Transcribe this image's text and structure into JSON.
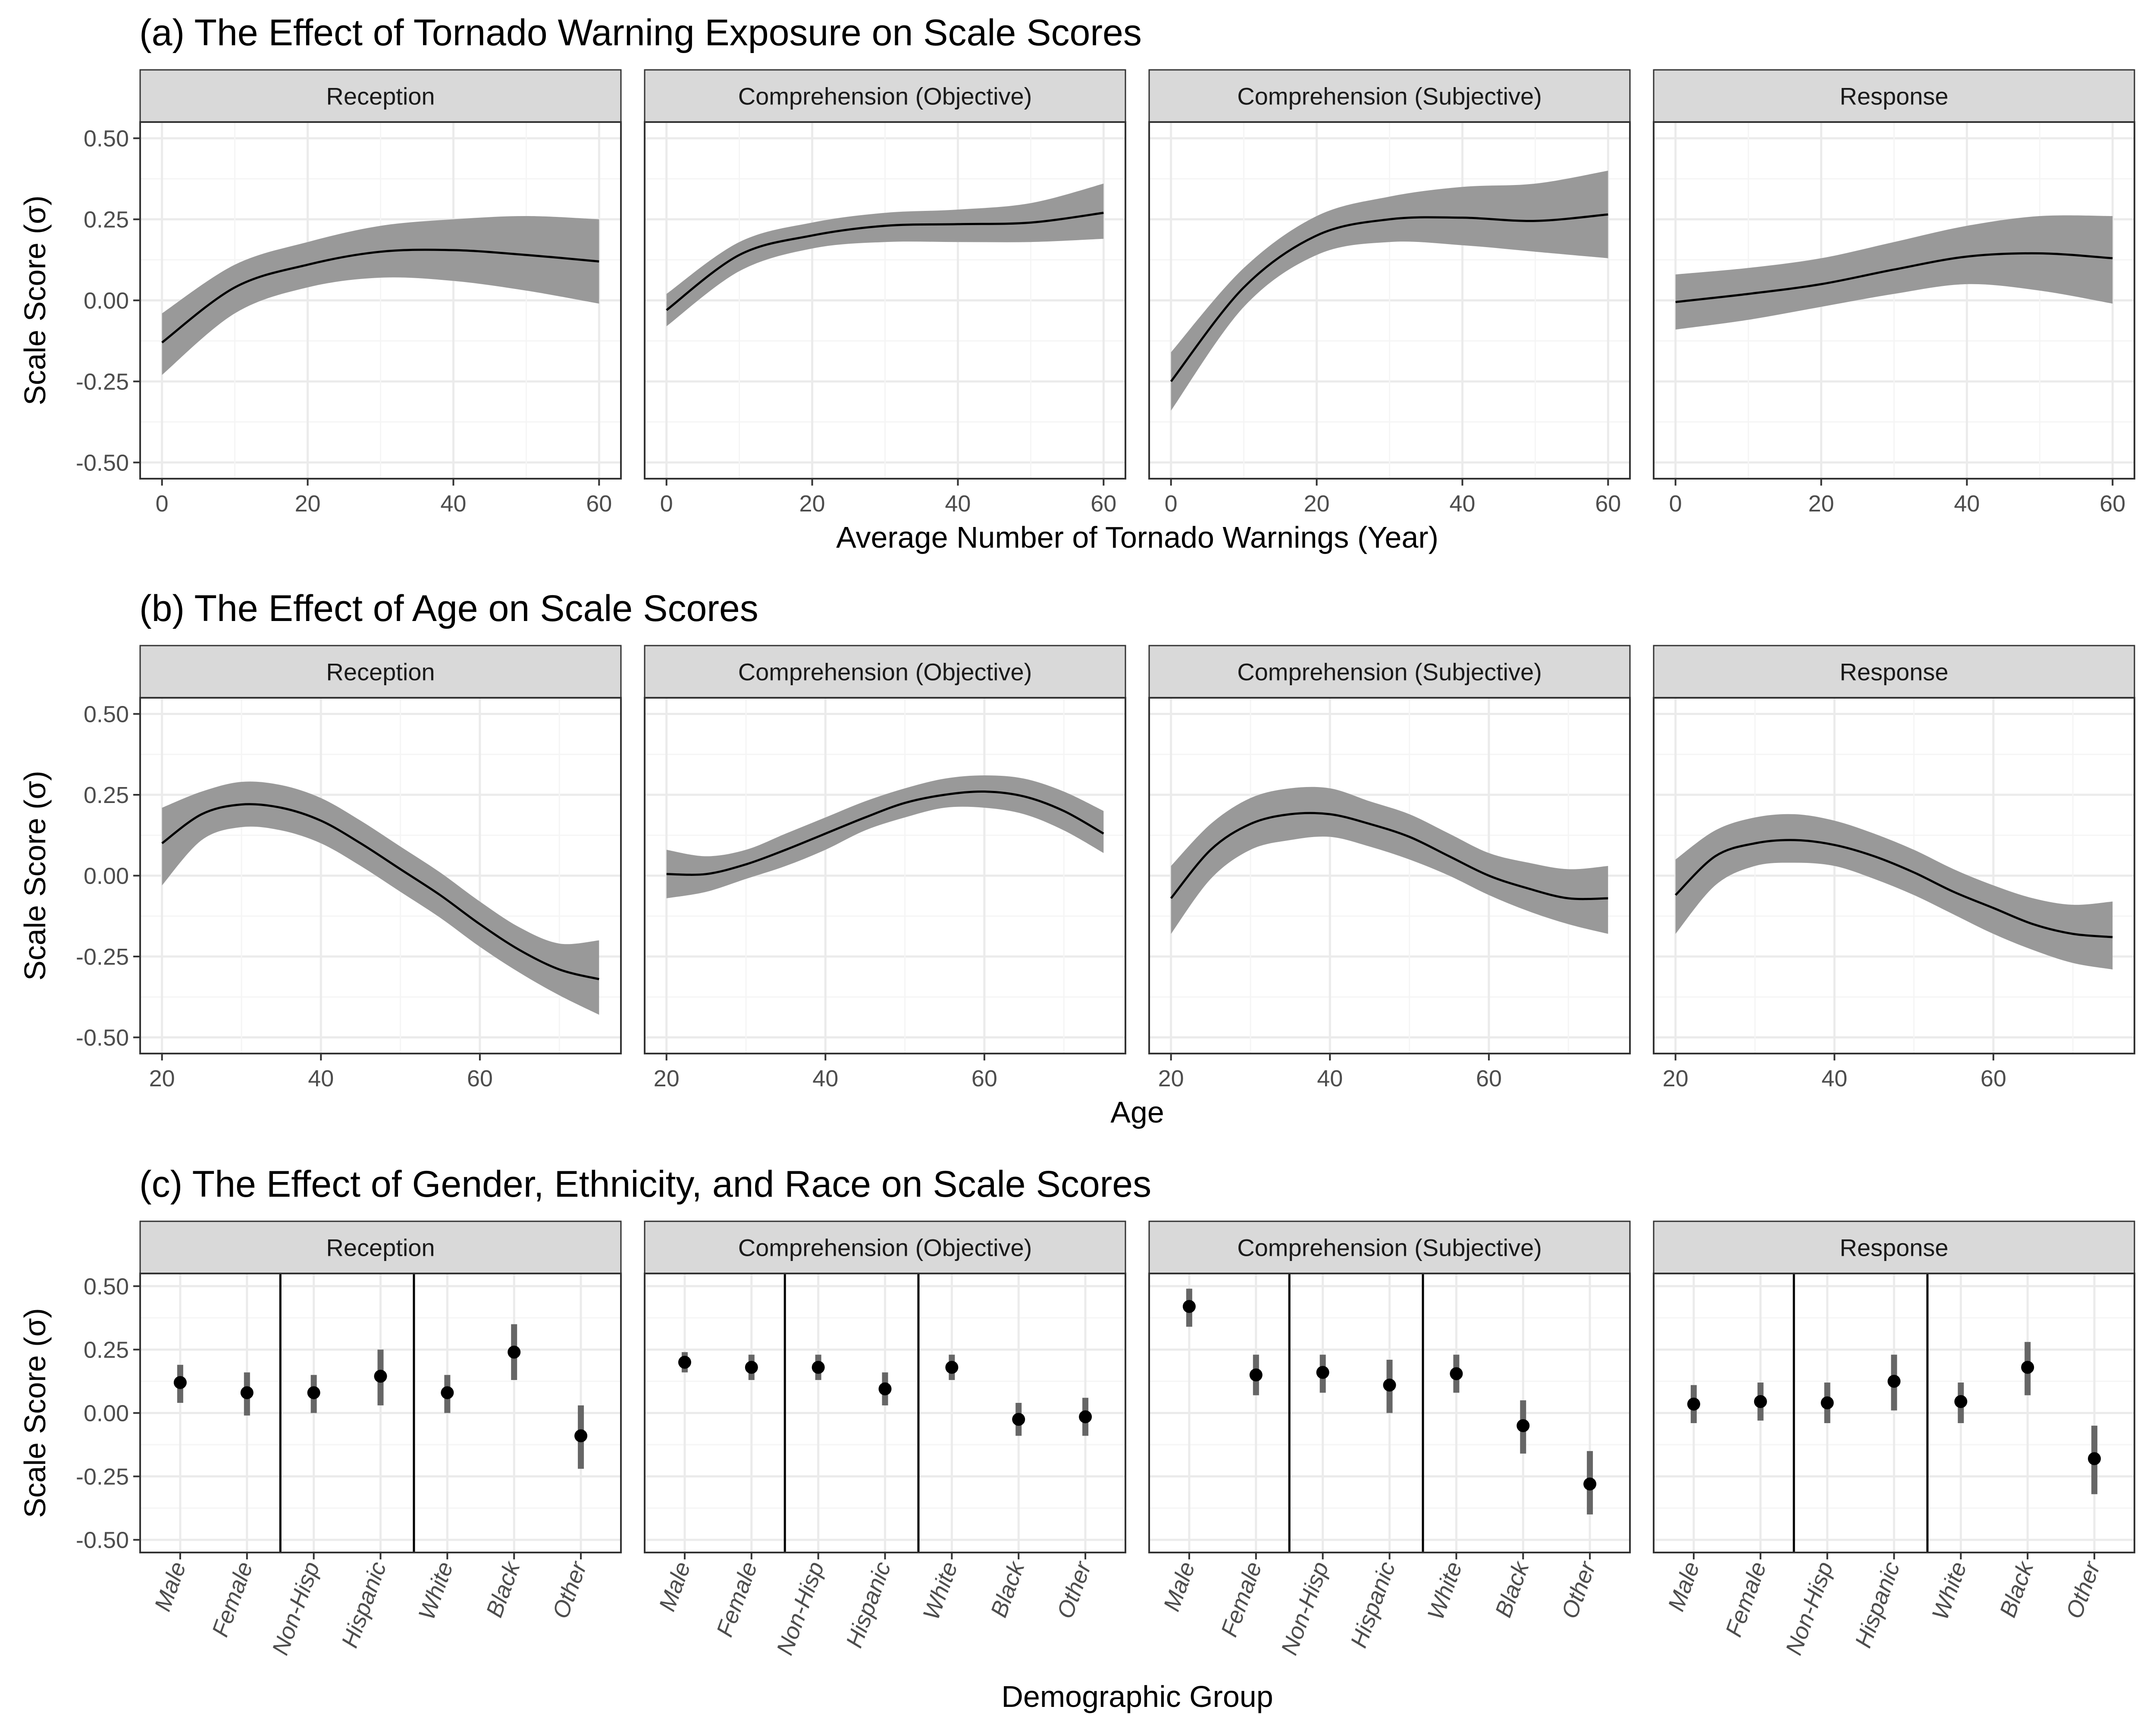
{
  "chart_data": [
    {
      "type": "line",
      "title": "(a) The Effect of Tornado Warning Exposure on Scale Scores",
      "xlabel": "Average Number of Tornado Warnings (Year)",
      "ylabel": "Scale Score (σ)",
      "xlim": [
        -3,
        63
      ],
      "ylim": [
        -0.55,
        0.55
      ],
      "xticks": [
        0,
        20,
        40,
        60
      ],
      "yticks": [
        -0.5,
        -0.25,
        0,
        0.25,
        0.5
      ],
      "ytick_labels": [
        "-0.50",
        "-0.25",
        "0.00",
        "0.25",
        "0.50"
      ],
      "grid": true,
      "panels": [
        {
          "name": "Reception",
          "x": [
            0,
            10,
            20,
            30,
            40,
            50,
            60
          ],
          "y": [
            -0.13,
            0.04,
            0.11,
            0.15,
            0.155,
            0.14,
            0.12
          ],
          "lower": [
            -0.23,
            -0.04,
            0.04,
            0.07,
            0.06,
            0.03,
            -0.01
          ],
          "upper": [
            -0.04,
            0.11,
            0.18,
            0.23,
            0.25,
            0.26,
            0.25
          ]
        },
        {
          "name": "Comprehension (Objective)",
          "x": [
            0,
            10,
            20,
            30,
            40,
            50,
            60
          ],
          "y": [
            -0.03,
            0.14,
            0.2,
            0.23,
            0.235,
            0.24,
            0.27
          ],
          "lower": [
            -0.08,
            0.09,
            0.16,
            0.18,
            0.18,
            0.18,
            0.19
          ],
          "upper": [
            0.02,
            0.18,
            0.24,
            0.27,
            0.28,
            0.3,
            0.36
          ]
        },
        {
          "name": "Comprehension (Subjective)",
          "x": [
            0,
            10,
            20,
            30,
            40,
            50,
            60
          ],
          "y": [
            -0.25,
            0.04,
            0.2,
            0.25,
            0.255,
            0.245,
            0.265
          ],
          "lower": [
            -0.34,
            -0.02,
            0.14,
            0.18,
            0.17,
            0.15,
            0.13
          ],
          "upper": [
            -0.16,
            0.1,
            0.26,
            0.32,
            0.35,
            0.36,
            0.4
          ]
        },
        {
          "name": "Response",
          "x": [
            0,
            10,
            20,
            30,
            40,
            50,
            60
          ],
          "y": [
            -0.005,
            0.02,
            0.05,
            0.095,
            0.135,
            0.145,
            0.13
          ],
          "lower": [
            -0.09,
            -0.06,
            -0.02,
            0.02,
            0.05,
            0.03,
            -0.01
          ],
          "upper": [
            0.08,
            0.1,
            0.13,
            0.18,
            0.23,
            0.26,
            0.26
          ]
        }
      ]
    },
    {
      "type": "line",
      "title": "(b) The Effect of Age on Scale Scores",
      "xlabel": "Age",
      "ylabel": "Scale Score (σ)",
      "xlim": [
        17.25,
        77.75
      ],
      "ylim": [
        -0.55,
        0.55
      ],
      "xticks": [
        20,
        40,
        60
      ],
      "yticks": [
        -0.5,
        -0.25,
        0,
        0.25,
        0.5
      ],
      "ytick_labels": [
        "-0.50",
        "-0.25",
        "0.00",
        "0.25",
        "0.50"
      ],
      "grid": true,
      "panels": [
        {
          "name": "Reception",
          "x": [
            20,
            25,
            30,
            35,
            40,
            45,
            50,
            55,
            60,
            65,
            70,
            75
          ],
          "y": [
            0.1,
            0.19,
            0.22,
            0.21,
            0.17,
            0.1,
            0.02,
            -0.06,
            -0.15,
            -0.23,
            -0.29,
            -0.32
          ],
          "lower": [
            -0.03,
            0.11,
            0.15,
            0.14,
            0.1,
            0.03,
            -0.05,
            -0.13,
            -0.22,
            -0.3,
            -0.37,
            -0.43
          ],
          "upper": [
            0.21,
            0.26,
            0.29,
            0.28,
            0.24,
            0.17,
            0.09,
            0.01,
            -0.08,
            -0.16,
            -0.21,
            -0.2
          ]
        },
        {
          "name": "Comprehension (Objective)",
          "x": [
            20,
            25,
            30,
            35,
            40,
            45,
            50,
            55,
            60,
            65,
            70,
            75
          ],
          "y": [
            0.005,
            0.005,
            0.035,
            0.08,
            0.13,
            0.18,
            0.225,
            0.25,
            0.26,
            0.245,
            0.2,
            0.13
          ],
          "lower": [
            -0.07,
            -0.05,
            -0.01,
            0.03,
            0.08,
            0.14,
            0.18,
            0.21,
            0.21,
            0.19,
            0.14,
            0.07
          ],
          "upper": [
            0.08,
            0.06,
            0.08,
            0.13,
            0.18,
            0.23,
            0.27,
            0.3,
            0.31,
            0.3,
            0.26,
            0.2
          ]
        },
        {
          "name": "Comprehension (Subjective)",
          "x": [
            20,
            25,
            30,
            35,
            40,
            45,
            50,
            55,
            60,
            65,
            70,
            75
          ],
          "y": [
            -0.07,
            0.08,
            0.16,
            0.19,
            0.19,
            0.16,
            0.12,
            0.06,
            0.0,
            -0.04,
            -0.07,
            -0.07
          ],
          "lower": [
            -0.18,
            -0.01,
            0.08,
            0.11,
            0.12,
            0.09,
            0.05,
            0.0,
            -0.06,
            -0.11,
            -0.15,
            -0.18
          ],
          "upper": [
            0.03,
            0.16,
            0.24,
            0.27,
            0.27,
            0.23,
            0.19,
            0.13,
            0.07,
            0.04,
            0.02,
            0.03
          ]
        },
        {
          "name": "Response",
          "x": [
            20,
            25,
            30,
            35,
            40,
            45,
            50,
            55,
            60,
            65,
            70,
            75
          ],
          "y": [
            -0.06,
            0.06,
            0.1,
            0.11,
            0.095,
            0.06,
            0.01,
            -0.05,
            -0.1,
            -0.15,
            -0.18,
            -0.19
          ],
          "lower": [
            -0.18,
            -0.03,
            0.03,
            0.04,
            0.03,
            -0.01,
            -0.06,
            -0.12,
            -0.18,
            -0.23,
            -0.27,
            -0.29
          ],
          "upper": [
            0.05,
            0.14,
            0.18,
            0.19,
            0.17,
            0.13,
            0.08,
            0.02,
            -0.03,
            -0.07,
            -0.09,
            -0.08
          ]
        }
      ]
    },
    {
      "type": "scatter",
      "title": "(c) The Effect of Gender, Ethnicity, and Race on Scale Scores",
      "xlabel": "Demographic Group",
      "ylabel": "Scale Score (σ)",
      "categories": [
        "Male",
        "Female",
        "Non-Hisp",
        "Hispanic",
        "White",
        "Black",
        "Other"
      ],
      "ylim": [
        -0.55,
        0.55
      ],
      "yticks": [
        -0.5,
        -0.25,
        0,
        0.25,
        0.5
      ],
      "ytick_labels": [
        "-0.50",
        "-0.25",
        "0.00",
        "0.25",
        "0.50"
      ],
      "separators_after": [
        2,
        4
      ],
      "grid": true,
      "panels": [
        {
          "name": "Reception",
          "values": [
            0.12,
            0.08,
            0.08,
            0.145,
            0.08,
            0.24,
            -0.09
          ],
          "lower": [
            0.04,
            -0.01,
            0.0,
            0.03,
            0.0,
            0.13,
            -0.22
          ],
          "upper": [
            0.19,
            0.16,
            0.15,
            0.25,
            0.15,
            0.35,
            0.03
          ]
        },
        {
          "name": "Comprehension (Objective)",
          "values": [
            0.2,
            0.18,
            0.18,
            0.095,
            0.18,
            -0.025,
            -0.015
          ],
          "lower": [
            0.16,
            0.13,
            0.13,
            0.03,
            0.13,
            -0.09,
            -0.09
          ],
          "upper": [
            0.24,
            0.23,
            0.23,
            0.16,
            0.23,
            0.04,
            0.06
          ]
        },
        {
          "name": "Comprehension (Subjective)",
          "values": [
            0.42,
            0.15,
            0.16,
            0.11,
            0.155,
            -0.05,
            -0.28
          ],
          "lower": [
            0.34,
            0.07,
            0.08,
            0.0,
            0.08,
            -0.16,
            -0.4
          ],
          "upper": [
            0.49,
            0.23,
            0.23,
            0.21,
            0.23,
            0.05,
            -0.15
          ]
        },
        {
          "name": "Response",
          "values": [
            0.035,
            0.045,
            0.04,
            0.125,
            0.045,
            0.18,
            -0.18
          ],
          "lower": [
            -0.04,
            -0.03,
            -0.04,
            0.01,
            -0.04,
            0.07,
            -0.32
          ],
          "upper": [
            0.11,
            0.12,
            0.12,
            0.23,
            0.12,
            0.28,
            -0.05
          ]
        }
      ]
    }
  ],
  "colors": {
    "band": "#999999",
    "line": "#000000",
    "point": "#000000",
    "errorbar": "#666666",
    "strip_fill": "#d9d9d9",
    "strip_border": "#333333",
    "panel_border": "#333333",
    "grid_major": "#ebebeb",
    "grid_minor": "#f5f5f5",
    "separator": "#000000"
  }
}
